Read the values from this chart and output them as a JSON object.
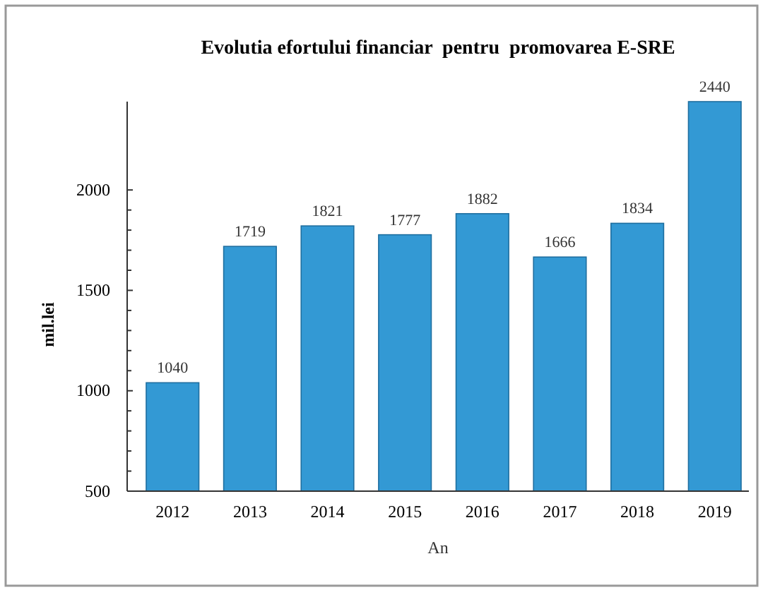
{
  "chart_data": {
    "type": "bar",
    "title": "Evolutia efortului financiar  pentru  promovarea E-SRE",
    "xlabel": "An",
    "ylabel": "mil.lei",
    "categories": [
      "2012",
      "2013",
      "2014",
      "2015",
      "2016",
      "2017",
      "2018",
      "2019"
    ],
    "values": [
      1040,
      1719,
      1821,
      1777,
      1882,
      1666,
      1834,
      2440
    ],
    "color": "#3399d4",
    "data_labels": true,
    "ylim": [
      500,
      2440
    ],
    "yticks": [
      500,
      {
        "value": 600,
        "label": null
      },
      {
        "value": 700,
        "label": null
      },
      {
        "value": 800,
        "label": null
      },
      {
        "value": 900,
        "label": null
      },
      1000,
      {
        "value": 1100,
        "label": null
      },
      {
        "value": 1200,
        "label": null
      },
      {
        "value": 1300,
        "label": null
      },
      {
        "value": 1400,
        "label": null
      },
      1500,
      {
        "value": 1600,
        "label": null
      },
      {
        "value": 1700,
        "label": null
      },
      {
        "value": 1800,
        "label": null
      },
      {
        "value": 1900,
        "label": null
      },
      2000
    ],
    "grid": false
  }
}
